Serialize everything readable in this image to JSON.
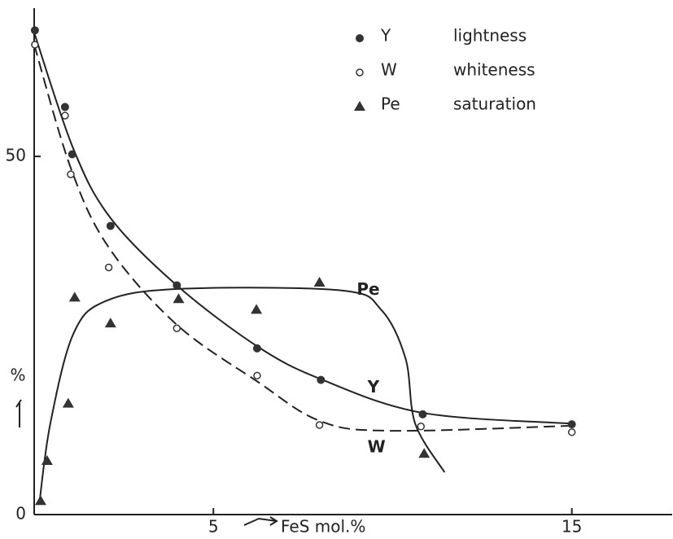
{
  "chart_data": {
    "type": "scatter",
    "xlabel": "FeS mol.%",
    "ylabel": "%",
    "xlim": [
      0,
      17.8
    ],
    "ylim": [
      0,
      70.7
    ],
    "xticks": [
      5,
      15
    ],
    "yticks": [
      0,
      50
    ],
    "legend": "top-right",
    "series": [
      {
        "name": "Y",
        "description": "lightness",
        "marker": "filled-circle",
        "color": "#333",
        "x": [
          0.02,
          0.86,
          1.06,
          2.13,
          3.98,
          6.22,
          8.0,
          10.84,
          15
        ],
        "values": [
          67.6,
          56.9,
          50.3,
          40.3,
          32.0,
          23.2,
          18.8,
          14.0,
          12.6
        ]
      },
      {
        "name": "W",
        "description": "whiteness",
        "marker": "open-circle",
        "color": "#333",
        "x": [
          0.02,
          0.86,
          1.02,
          2.08,
          3.98,
          6.22,
          7.96,
          10.79,
          15
        ],
        "values": [
          65.6,
          55.7,
          47.5,
          34.5,
          26.0,
          19.4,
          12.5,
          12.3,
          11.5
        ]
      },
      {
        "name": "Pe",
        "description": "saturation",
        "marker": "triangle",
        "color": "#333",
        "x": [
          0.18,
          0.36,
          0.95,
          1.13,
          2.13,
          4.03,
          6.2,
          7.96,
          10.88
        ],
        "values": [
          1.9,
          7.5,
          15.5,
          30.3,
          26.7,
          30.1,
          28.6,
          32.4,
          8.5
        ]
      }
    ],
    "curves": [
      {
        "label": "Pe",
        "dashed": false,
        "label_at": [
          9.0,
          31.3
        ],
        "x": [
          0.14,
          0.45,
          1.09,
          1.99,
          4.03,
          8.55,
          9.68,
          10.36,
          10.63,
          11.45
        ],
        "values": [
          1.4,
          12.7,
          25.2,
          29.8,
          31.5,
          31.3,
          28.6,
          21.8,
          12.7,
          5.9
        ]
      },
      {
        "label": "Y",
        "dashed": false,
        "label_at": [
          9.3,
          17.7
        ],
        "x": [
          0,
          1.09,
          2.13,
          3.98,
          6.22,
          8.0,
          10.84,
          15
        ],
        "values": [
          67.3,
          51.1,
          41.4,
          32.0,
          23.5,
          18.9,
          14.2,
          12.7
        ]
      },
      {
        "label": "W",
        "dashed": true,
        "label_at": [
          9.3,
          9.3
        ],
        "x": [
          0,
          1.02,
          2.08,
          3.98,
          6.22,
          7.96,
          9.91,
          15
        ],
        "values": [
          65.6,
          48.4,
          37.3,
          26.5,
          18.6,
          13.1,
          11.7,
          12.4
        ]
      }
    ]
  }
}
